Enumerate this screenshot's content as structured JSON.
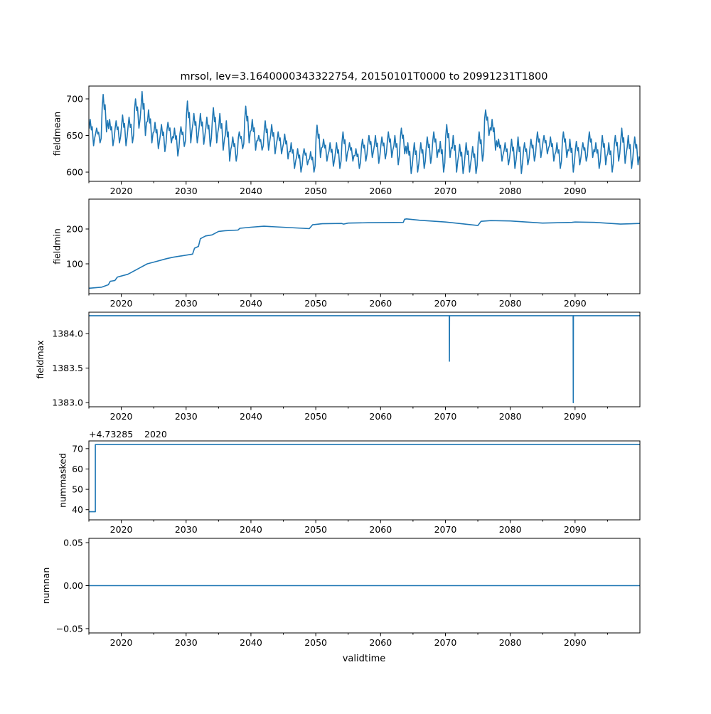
{
  "chart_data": {
    "type": "line",
    "title": "mrsol, lev=3.1640000343322754, 20150101T0000 to 20991231T1800",
    "xlabel": "validtime",
    "xlim": [
      2015,
      2100
    ],
    "x_ticks": [
      "2020",
      "2030",
      "2040",
      "2050",
      "2060",
      "2070",
      "2080",
      "2090"
    ],
    "x_tick_values": [
      2020,
      2030,
      2040,
      2050,
      2060,
      2070,
      2080,
      2090
    ],
    "x_minor_tick_values": [
      2015,
      2025,
      2035,
      2045,
      2055,
      2065,
      2075,
      2085,
      2095
    ],
    "line_color": "#1f77b4",
    "grid": false,
    "panels": [
      {
        "ylabel": "fieldmean",
        "ylim": [
          587.4,
          717.5
        ],
        "y_ticks": [
          "600",
          "650",
          "700"
        ],
        "y_tick_values": [
          600,
          650,
          700
        ],
        "series_kind": "seasonal",
        "x_start": 2015,
        "peak_trough_per_year": [
          [
            672,
            636
          ],
          [
            660,
            640
          ],
          [
            706,
            655
          ],
          [
            672,
            636
          ],
          [
            670,
            640
          ],
          [
            678,
            636
          ],
          [
            675,
            640
          ],
          [
            700,
            660
          ],
          [
            710,
            650
          ],
          [
            685,
            640
          ],
          [
            668,
            632
          ],
          [
            665,
            628
          ],
          [
            668,
            640
          ],
          [
            660,
            622
          ],
          [
            662,
            635
          ],
          [
            697,
            640
          ],
          [
            680,
            640
          ],
          [
            680,
            638
          ],
          [
            675,
            635
          ],
          [
            688,
            640
          ],
          [
            680,
            630
          ],
          [
            670,
            615
          ],
          [
            648,
            615
          ],
          [
            655,
            632
          ],
          [
            690,
            640
          ],
          [
            672,
            630
          ],
          [
            650,
            630
          ],
          [
            670,
            630
          ],
          [
            665,
            625
          ],
          [
            655,
            625
          ],
          [
            652,
            618
          ],
          [
            640,
            605
          ],
          [
            632,
            600
          ],
          [
            632,
            610
          ],
          [
            628,
            600
          ],
          [
            664,
            620
          ],
          [
            645,
            615
          ],
          [
            640,
            608
          ],
          [
            640,
            605
          ],
          [
            655,
            615
          ],
          [
            640,
            615
          ],
          [
            632,
            605
          ],
          [
            645,
            615
          ],
          [
            650,
            620
          ],
          [
            650,
            612
          ],
          [
            648,
            618
          ],
          [
            655,
            620
          ],
          [
            650,
            610
          ],
          [
            660,
            625
          ],
          [
            640,
            598
          ],
          [
            640,
            600
          ],
          [
            640,
            605
          ],
          [
            648,
            612
          ],
          [
            655,
            620
          ],
          [
            642,
            600
          ],
          [
            665,
            620
          ],
          [
            650,
            600
          ],
          [
            638,
            598
          ],
          [
            640,
            600
          ],
          [
            635,
            598
          ],
          [
            655,
            615
          ],
          [
            685,
            650
          ],
          [
            672,
            630
          ],
          [
            645,
            615
          ],
          [
            640,
            610
          ],
          [
            645,
            605
          ],
          [
            648,
            598
          ],
          [
            640,
            610
          ],
          [
            645,
            615
          ],
          [
            655,
            620
          ],
          [
            650,
            625
          ],
          [
            648,
            615
          ],
          [
            640,
            605
          ],
          [
            655,
            620
          ],
          [
            645,
            600
          ],
          [
            642,
            610
          ],
          [
            640,
            615
          ],
          [
            655,
            620
          ],
          [
            640,
            605
          ],
          [
            650,
            610
          ],
          [
            640,
            600
          ],
          [
            650,
            615
          ],
          [
            660,
            612
          ],
          [
            650,
            605
          ],
          [
            648,
            610
          ]
        ]
      },
      {
        "ylabel": "fieldmin",
        "ylim": [
          14.3,
          285.7
        ],
        "y_ticks": [
          "100",
          "200"
        ],
        "y_tick_values": [
          100,
          200
        ],
        "series_kind": "points",
        "points": [
          [
            2015,
            30
          ],
          [
            2017,
            33
          ],
          [
            2018,
            40
          ],
          [
            2018.3,
            50
          ],
          [
            2019,
            52
          ],
          [
            2019.4,
            62
          ],
          [
            2021,
            70
          ],
          [
            2021.5,
            75
          ],
          [
            2023,
            90
          ],
          [
            2024,
            100
          ],
          [
            2025,
            105
          ],
          [
            2027,
            115
          ],
          [
            2028,
            119
          ],
          [
            2031,
            128
          ],
          [
            2031.3,
            145
          ],
          [
            2031.9,
            150
          ],
          [
            2032.2,
            172
          ],
          [
            2033,
            180
          ],
          [
            2034,
            183
          ],
          [
            2035,
            193
          ],
          [
            2036,
            195
          ],
          [
            2038,
            197
          ],
          [
            2038.3,
            202
          ],
          [
            2040,
            205
          ],
          [
            2042,
            208
          ],
          [
            2049,
            201
          ],
          [
            2049.5,
            212
          ],
          [
            2051,
            215
          ],
          [
            2054,
            216
          ],
          [
            2054.3,
            214
          ],
          [
            2055,
            217
          ],
          [
            2058,
            218
          ],
          [
            2063.5,
            219
          ],
          [
            2063.7,
            228
          ],
          [
            2064,
            229
          ],
          [
            2066,
            225
          ],
          [
            2070,
            220
          ],
          [
            2075,
            210
          ],
          [
            2075.5,
            222
          ],
          [
            2077,
            224
          ],
          [
            2080,
            223
          ],
          [
            2085,
            217
          ],
          [
            2089.5,
            219
          ],
          [
            2090,
            220
          ],
          [
            2093,
            219
          ],
          [
            2097,
            214
          ],
          [
            2100,
            216
          ]
        ]
      },
      {
        "ylabel": "fieldmax",
        "ylim": [
          1382.94,
          1384.31
        ],
        "y_ticks": [
          "1383.0",
          "1383.5",
          "1384.0"
        ],
        "y_tick_values": [
          1383.0,
          1383.5,
          1384.0
        ],
        "series_kind": "points",
        "points": [
          [
            2015,
            1384.26
          ],
          [
            2070.6,
            1384.26
          ],
          [
            2070.62,
            1383.6
          ],
          [
            2070.64,
            1384.26
          ],
          [
            2089.7,
            1384.26
          ],
          [
            2089.72,
            1383.0
          ],
          [
            2089.74,
            1384.26
          ],
          [
            2100,
            1384.26
          ]
        ]
      },
      {
        "ylabel": "nummasked",
        "ylim": [
          35.0,
          73.8
        ],
        "y_ticks": [
          "40",
          "50",
          "60",
          "70"
        ],
        "y_tick_values": [
          40,
          50,
          60,
          70
        ],
        "offset_text": "+4.73285",
        "offset_tick_overlap": "2020",
        "series_kind": "points",
        "points": [
          [
            2015,
            39
          ],
          [
            2016,
            39
          ],
          [
            2016,
            72
          ],
          [
            2100,
            72
          ]
        ]
      },
      {
        "ylabel": "numnan",
        "ylim": [
          -0.055,
          0.055
        ],
        "y_ticks": [
          "−0.05",
          "0.00",
          "0.05"
        ],
        "y_tick_values": [
          -0.05,
          0,
          0.05
        ],
        "series_kind": "points",
        "points": [
          [
            2015,
            0
          ],
          [
            2100,
            0
          ]
        ]
      }
    ]
  }
}
